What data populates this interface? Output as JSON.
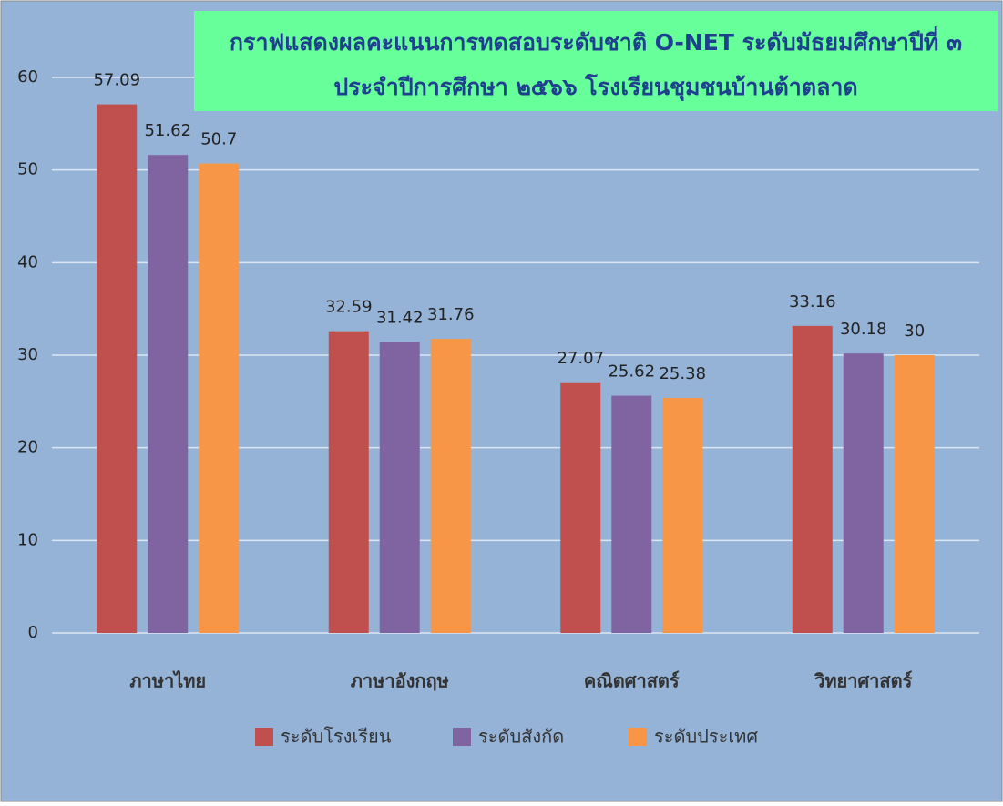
{
  "chart_data": {
    "type": "bar",
    "title": [
      "กราฟแสดงผลคะแนนการทดสอบระดับชาติ O-NET ระดับมัธยมศึกษาปีที่ ๓",
      "ประจำปีการศึกษา ๒๕๖๖ โรงเรียนชุมชนบ้านต้าตลาด"
    ],
    "categories": [
      "ภาษาไทย",
      "ภาษาอังกฤษ",
      "คณิตศาสตร์",
      "วิทยาศาสตร์"
    ],
    "series": [
      {
        "name": "ระดับโรงเรียน",
        "color": "#c0504d",
        "values": [
          57.09,
          32.59,
          27.07,
          33.16
        ]
      },
      {
        "name": "ระดับสังกัด",
        "color": "#8064a2",
        "values": [
          51.62,
          31.42,
          25.62,
          30.18
        ]
      },
      {
        "name": "ระดับประเทศ",
        "color": "#f79646",
        "values": [
          50.7,
          31.76,
          25.38,
          30
        ]
      }
    ],
    "ylim": [
      0,
      60
    ],
    "yticks": [
      0,
      10,
      20,
      30,
      40,
      50,
      60
    ],
    "grid": true,
    "legend": "bottom"
  }
}
